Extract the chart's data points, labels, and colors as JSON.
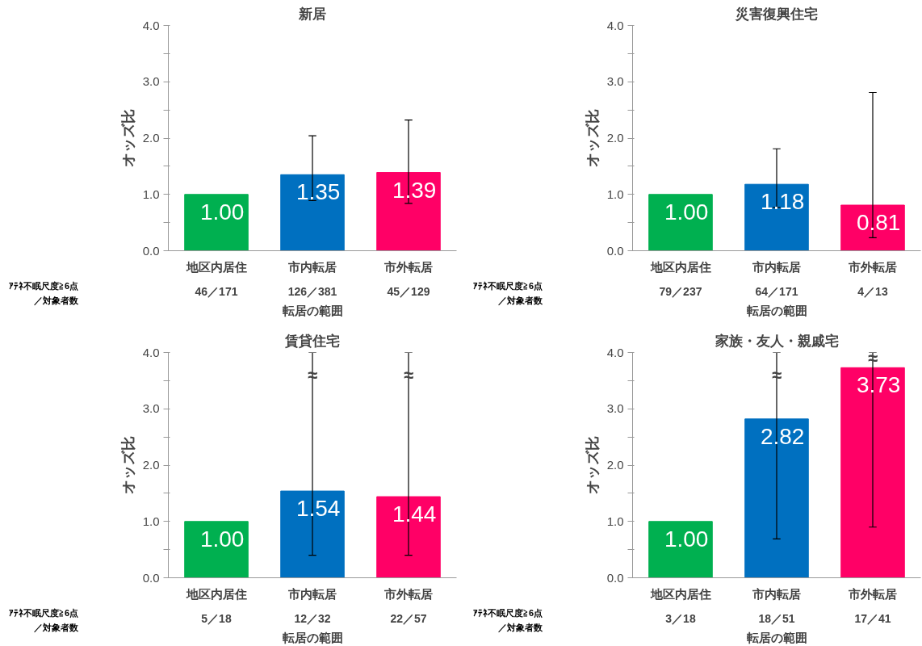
{
  "chart_data": [
    {
      "type": "bar",
      "title": "新居",
      "xlabel": "転居の範囲",
      "ylabel": "オッズ比",
      "categories": [
        "地区内居住",
        "市内転居",
        "市外転居"
      ],
      "values": [
        1.0,
        1.35,
        1.39
      ],
      "value_labels": [
        "1.00",
        "1.35",
        "1.39"
      ],
      "colors": [
        "#00b050",
        "#0070c0",
        "#ff0066"
      ],
      "errors": [
        null,
        [
          0.89,
          2.04
        ],
        [
          0.84,
          2.32
        ]
      ],
      "ylim": [
        0,
        4
      ],
      "yticks": [
        {
          "value": 0,
          "label": "0.0"
        },
        {
          "value": 0.5,
          "label": null
        },
        {
          "value": 1,
          "label": "1.0"
        },
        {
          "value": 1.5,
          "label": null
        },
        {
          "value": 2,
          "label": "2.0"
        },
        {
          "value": 2.5,
          "label": null
        },
        {
          "value": 3,
          "label": "3.0"
        },
        {
          "value": 3.5,
          "label": null
        },
        {
          "value": 4,
          "label": "4.0"
        }
      ],
      "grid": false,
      "annotations": [
        "ｱﾃﾈ不眠尺度≧6点／対象者数",
        "46／171",
        "126／381",
        "45／129"
      ]
    },
    {
      "type": "bar",
      "title": "災害復興住宅",
      "xlabel": "転居の範囲",
      "ylabel": "オッズ比",
      "categories": [
        "地区内居住",
        "市内転居",
        "市外転居"
      ],
      "values": [
        1.0,
        1.18,
        0.81
      ],
      "value_labels": [
        "1.00",
        "1.18",
        "0.81"
      ],
      "colors": [
        "#00b050",
        "#0070c0",
        "#ff0066"
      ],
      "errors": [
        null,
        [
          0.77,
          1.81
        ],
        [
          0.23,
          2.81
        ]
      ],
      "ylim": [
        0,
        4
      ],
      "yticks": [
        {
          "value": 0,
          "label": "0.0"
        },
        {
          "value": 0.5,
          "label": null
        },
        {
          "value": 1,
          "label": "1.0"
        },
        {
          "value": 1.5,
          "label": null
        },
        {
          "value": 2,
          "label": "2.0"
        },
        {
          "value": 2.5,
          "label": null
        },
        {
          "value": 3,
          "label": "3.0"
        },
        {
          "value": 3.5,
          "label": null
        },
        {
          "value": 4,
          "label": "4.0"
        }
      ],
      "grid": false,
      "annotations": [
        "ｱﾃﾈ不眠尺度≧6点／対象者数",
        "79／237",
        "64／171",
        "4／13"
      ]
    },
    {
      "type": "bar",
      "title": "賃貸住宅",
      "xlabel": "転居の範囲",
      "ylabel": "オッズ比",
      "categories": [
        "地区内居住",
        "市内転居",
        "市外転居"
      ],
      "values": [
        1.0,
        1.54,
        1.44
      ],
      "value_labels": [
        "1.00",
        "1.54",
        "1.44"
      ],
      "colors": [
        "#00b050",
        "#0070c0",
        "#ff0066"
      ],
      "errors": [
        null,
        [
          0.4,
          4.0
        ],
        [
          0.4,
          4.0
        ]
      ],
      "ylim": [
        0,
        4
      ],
      "yticks": [
        {
          "value": 0,
          "label": "0.0"
        },
        {
          "value": 0.5,
          "label": null
        },
        {
          "value": 1,
          "label": "1.0"
        },
        {
          "value": 1.5,
          "label": null
        },
        {
          "value": 2,
          "label": "2.0"
        },
        {
          "value": 2.5,
          "label": null
        },
        {
          "value": 3,
          "label": "3.0"
        },
        {
          "value": 3.5,
          "label": null
        },
        {
          "value": 4,
          "label": "4.0"
        }
      ],
      "grid": false,
      "annotations": [
        "ｱﾃﾈ不眠尺度≧6点／対象者数",
        "5／18",
        "12／32",
        "22／57",
        "≈",
        "≈"
      ]
    },
    {
      "type": "bar",
      "title": "家族・友人・親戚宅",
      "xlabel": "転居の範囲",
      "ylabel": "オッズ比",
      "categories": [
        "地区内居住",
        "市内転居",
        "市外転居"
      ],
      "values": [
        1.0,
        2.82,
        3.73
      ],
      "value_labels": [
        "1.00",
        "2.82",
        "3.73"
      ],
      "colors": [
        "#00b050",
        "#0070c0",
        "#ff0066"
      ],
      "errors": [
        null,
        [
          0.69,
          4.0
        ],
        [
          0.9,
          4.0
        ]
      ],
      "ylim": [
        0,
        4
      ],
      "yticks": [
        {
          "value": 0,
          "label": "0.0"
        },
        {
          "value": 0.5,
          "label": null
        },
        {
          "value": 1,
          "label": "1.0"
        },
        {
          "value": 1.5,
          "label": null
        },
        {
          "value": 2,
          "label": "2.0"
        },
        {
          "value": 2.5,
          "label": null
        },
        {
          "value": 3,
          "label": "3.0"
        },
        {
          "value": 3.5,
          "label": null
        },
        {
          "value": 4,
          "label": "4.0"
        }
      ],
      "grid": false,
      "annotations": [
        "ｱﾃﾈ不眠尺度≧6点／対象者数",
        "3／18",
        "18／51",
        "17／41",
        "≈",
        "≈"
      ]
    }
  ]
}
